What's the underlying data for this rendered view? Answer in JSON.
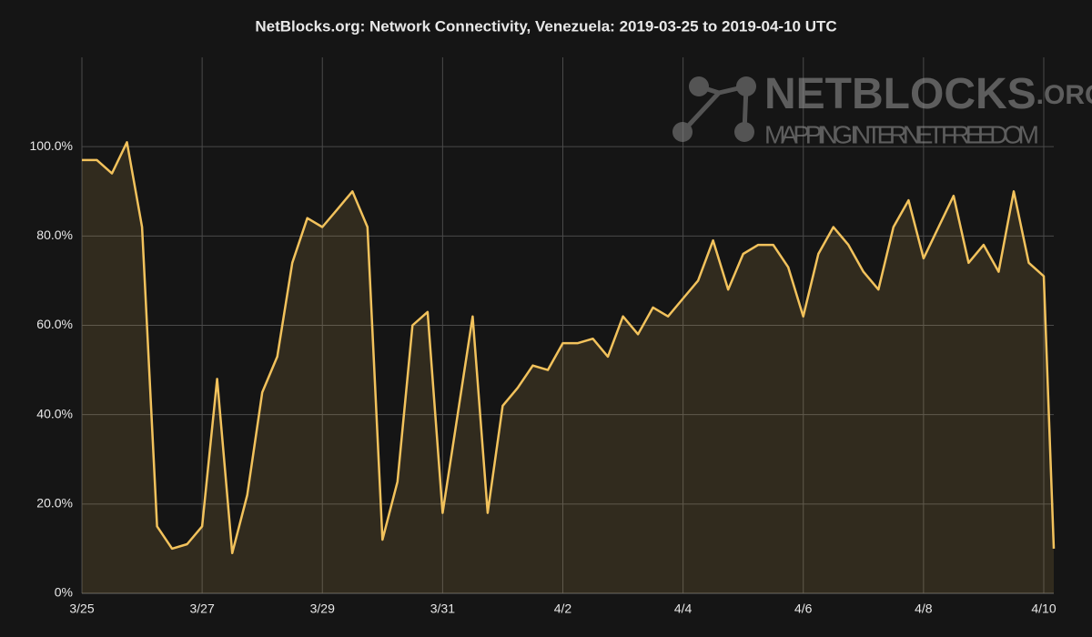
{
  "chart_data": {
    "type": "area",
    "title": "NetBlocks.org: Network Connectivity, Venezuela: 2019-03-25 to 2019-04-10 UTC",
    "watermark": {
      "brand": "NETBLOCKS",
      "suffix": ".ORG",
      "tagline": "MAPPING INTERNET FREEDOM"
    },
    "color": "#f2c25c",
    "grid": true,
    "xlim": [
      "2019-03-25 00:00",
      "2019-04-10 04:00"
    ],
    "xticks": [
      {
        "value": "2019-03-25 00:00",
        "label": "3/25"
      },
      {
        "value": "2019-03-27 00:00",
        "label": "3/27"
      },
      {
        "value": "2019-03-29 00:00",
        "label": "3/29"
      },
      {
        "value": "2019-03-31 00:00",
        "label": "3/31"
      },
      {
        "value": "2019-04-02 00:00",
        "label": "4/2"
      },
      {
        "value": "2019-04-04 00:00",
        "label": "4/4"
      },
      {
        "value": "2019-04-06 00:00",
        "label": "4/6"
      },
      {
        "value": "2019-04-08 00:00",
        "label": "4/8"
      },
      {
        "value": "2019-04-10 00:00",
        "label": "4/10"
      }
    ],
    "ylim": [
      0,
      120
    ],
    "yticks": [
      {
        "value": 0,
        "label": "0%"
      },
      {
        "value": 20,
        "label": "20.0%"
      },
      {
        "value": 40,
        "label": "40.0%"
      },
      {
        "value": 60,
        "label": "60.0%"
      },
      {
        "value": 80,
        "label": "80.0%"
      },
      {
        "value": 100,
        "label": "100.0%"
      }
    ],
    "x": [
      "2019-03-25 00:00",
      "2019-03-25 06:00",
      "2019-03-25 12:00",
      "2019-03-25 18:00",
      "2019-03-26 00:00",
      "2019-03-26 06:00",
      "2019-03-26 12:00",
      "2019-03-26 18:00",
      "2019-03-27 00:00",
      "2019-03-27 06:00",
      "2019-03-27 12:00",
      "2019-03-27 18:00",
      "2019-03-28 00:00",
      "2019-03-28 06:00",
      "2019-03-28 12:00",
      "2019-03-28 18:00",
      "2019-03-29 00:00",
      "2019-03-29 06:00",
      "2019-03-29 12:00",
      "2019-03-29 18:00",
      "2019-03-30 00:00",
      "2019-03-30 06:00",
      "2019-03-30 12:00",
      "2019-03-30 18:00",
      "2019-03-31 00:00",
      "2019-03-31 06:00",
      "2019-03-31 12:00",
      "2019-03-31 18:00",
      "2019-04-01 00:00",
      "2019-04-01 06:00",
      "2019-04-01 12:00",
      "2019-04-01 18:00",
      "2019-04-02 00:00",
      "2019-04-02 06:00",
      "2019-04-02 12:00",
      "2019-04-02 18:00",
      "2019-04-03 00:00",
      "2019-04-03 06:00",
      "2019-04-03 12:00",
      "2019-04-03 18:00",
      "2019-04-04 00:00",
      "2019-04-04 06:00",
      "2019-04-04 12:00",
      "2019-04-04 18:00",
      "2019-04-05 00:00",
      "2019-04-05 06:00",
      "2019-04-05 12:00",
      "2019-04-05 18:00",
      "2019-04-06 00:00",
      "2019-04-06 06:00",
      "2019-04-06 12:00",
      "2019-04-06 18:00",
      "2019-04-07 00:00",
      "2019-04-07 06:00",
      "2019-04-07 12:00",
      "2019-04-07 18:00",
      "2019-04-08 00:00",
      "2019-04-08 06:00",
      "2019-04-08 12:00",
      "2019-04-08 18:00",
      "2019-04-09 00:00",
      "2019-04-09 06:00",
      "2019-04-09 12:00",
      "2019-04-09 18:00",
      "2019-04-10 00:00",
      "2019-04-10 04:00"
    ],
    "values": [
      97,
      97,
      94,
      101,
      82,
      15,
      10,
      11,
      15,
      48,
      9,
      22,
      45,
      53,
      74,
      84,
      82,
      86,
      90,
      82,
      12,
      25,
      60,
      63,
      18,
      40,
      62,
      18,
      42,
      46,
      51,
      50,
      56,
      56,
      57,
      53,
      62,
      58,
      64,
      62,
      66,
      70,
      79,
      68,
      76,
      78,
      78,
      73,
      62,
      76,
      82,
      78,
      72,
      68,
      82,
      88,
      75,
      82,
      89,
      74,
      78,
      72,
      90,
      74,
      71,
      10
    ]
  }
}
